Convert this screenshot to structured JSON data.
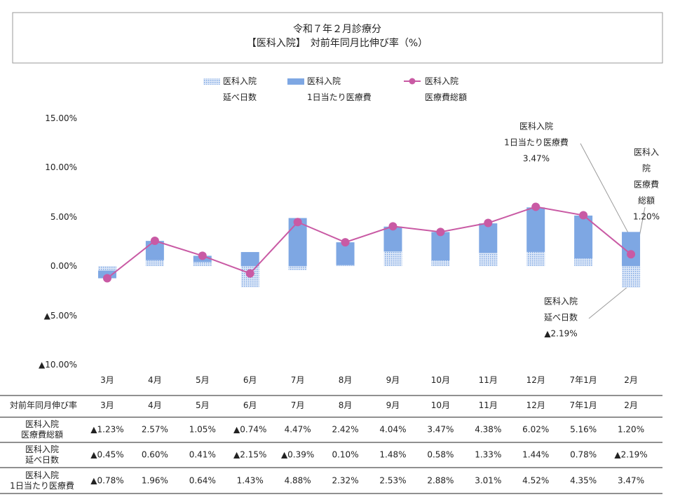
{
  "chart_data": {
    "type": "bar-line",
    "title": "令和７年２月診療分",
    "subtitle": "【医科入院】　対前年同月比伸び率（%）",
    "categories": [
      "3月",
      "4月",
      "5月",
      "6月",
      "7月",
      "8月",
      "9月",
      "10月",
      "11月",
      "12月",
      "7年1月",
      "2月"
    ],
    "series": [
      {
        "name": "医科入院\n延べ日数",
        "type": "bar",
        "pattern": true,
        "color": "#7ea7e3",
        "values": [
          -0.45,
          0.6,
          0.41,
          -2.15,
          -0.39,
          0.1,
          1.48,
          0.58,
          1.33,
          1.44,
          0.78,
          -2.19
        ],
        "value_labels": [
          "▲0.45%",
          "0.60%",
          "0.41%",
          "▲2.15%",
          "▲0.39%",
          "0.10%",
          "1.48%",
          "0.58%",
          "1.33%",
          "1.44%",
          "0.78%",
          "▲2.19%"
        ]
      },
      {
        "name": "医科入院\n1日当たり医療費",
        "type": "bar",
        "color": "#7ea7e3",
        "values": [
          -0.78,
          1.96,
          0.64,
          1.43,
          4.88,
          2.32,
          2.53,
          2.88,
          3.01,
          4.52,
          4.35,
          3.47
        ],
        "value_labels": [
          "▲0.78%",
          "1.96%",
          "0.64%",
          "1.43%",
          "4.88%",
          "2.32%",
          "2.53%",
          "2.88%",
          "3.01%",
          "4.52%",
          "4.35%",
          "3.47%"
        ]
      },
      {
        "name": "医科入院\n医療費総額",
        "type": "line",
        "color": "#c95aa4",
        "values": [
          -1.23,
          2.57,
          1.05,
          -0.74,
          4.47,
          2.42,
          4.04,
          3.47,
          4.38,
          6.02,
          5.16,
          1.2
        ],
        "value_labels": [
          "▲1.23%",
          "2.57%",
          "1.05%",
          "▲0.74%",
          "4.47%",
          "2.42%",
          "4.04%",
          "3.47%",
          "4.38%",
          "6.02%",
          "5.16%",
          "1.20%"
        ]
      }
    ],
    "ylim": [
      -10,
      15
    ],
    "yticks": [
      {
        "value": -10,
        "label": "▲10.00%"
      },
      {
        "value": -5,
        "label": "▲5.00%"
      },
      {
        "value": 0,
        "label": "0.00%"
      },
      {
        "value": 5,
        "label": "5.00%"
      },
      {
        "value": 10,
        "label": "10.00%"
      },
      {
        "value": 15,
        "label": "15.00%"
      }
    ],
    "grid": false,
    "legend": "top",
    "annotations": [
      {
        "text": "医科入院\n1日当たり医療費\n3.47%"
      },
      {
        "text": "医科入院\n医療費総額\n1.20%"
      },
      {
        "text": "医科入院\n延べ日数\n▲2.19%"
      }
    ],
    "table": {
      "header": "対前年同月伸び率"
    }
  }
}
